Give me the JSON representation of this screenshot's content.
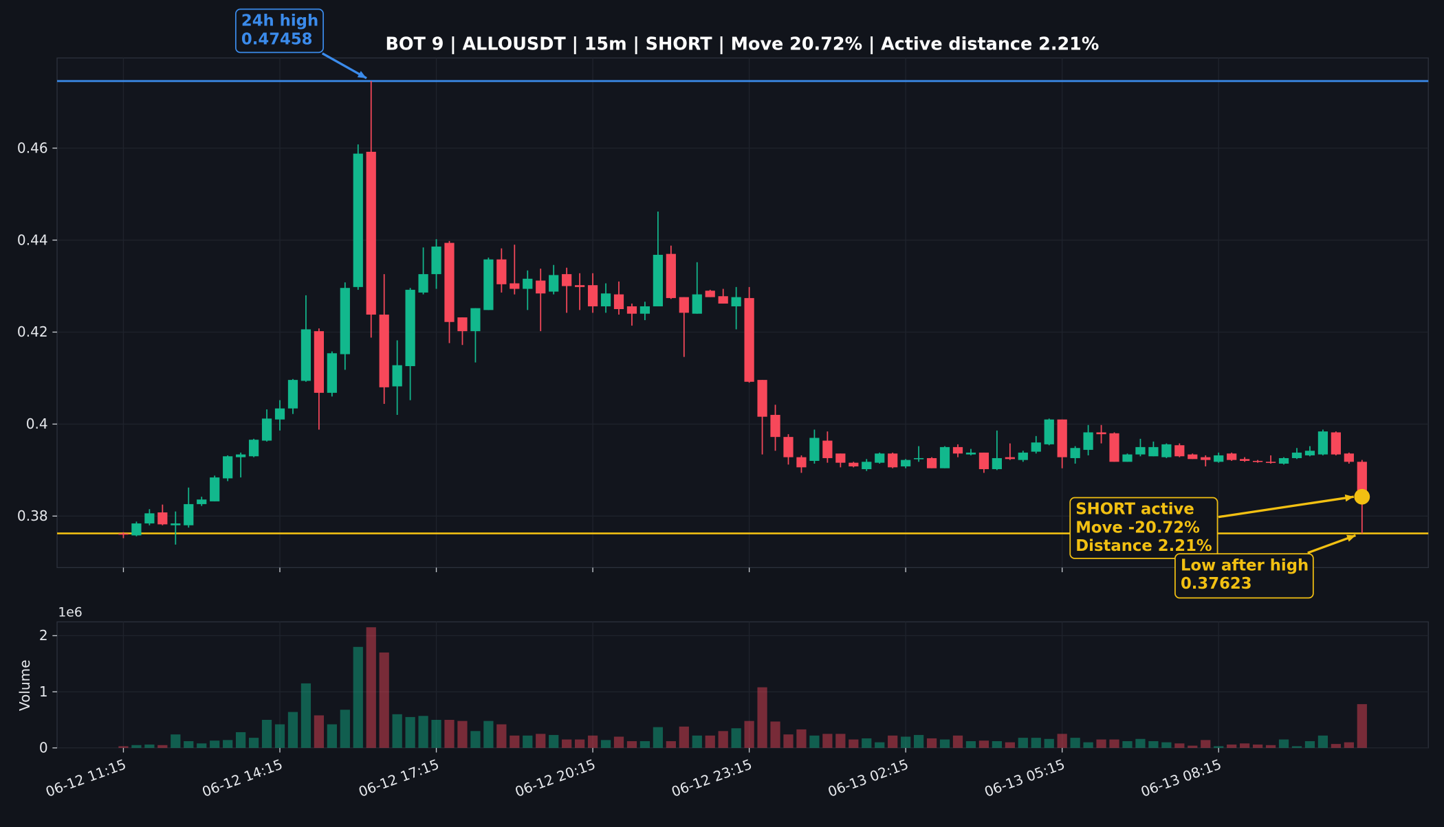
{
  "chart_data": {
    "type": "candlestick",
    "title": "BOT 9 | ALLOUSDT | 15m | SHORT | Move 20.72% | Active distance 2.21%",
    "categories": [
      "06-12 11:15",
      null,
      null,
      null,
      null,
      null,
      null,
      null,
      null,
      null,
      null,
      null,
      "06-12 14:15",
      null,
      null,
      null,
      null,
      null,
      null,
      null,
      null,
      null,
      null,
      null,
      "06-12 17:15",
      null,
      null,
      null,
      null,
      null,
      null,
      null,
      null,
      null,
      null,
      null,
      "06-12 20:15",
      null,
      null,
      null,
      null,
      null,
      null,
      null,
      null,
      null,
      null,
      null,
      "06-12 23:15",
      null,
      null,
      null,
      null,
      null,
      null,
      null,
      null,
      null,
      null,
      null,
      "06-13 02:15",
      null,
      null,
      null,
      null,
      null,
      null,
      null,
      null,
      null,
      null,
      null,
      "06-13 05:15",
      null,
      null,
      null,
      null,
      null,
      null,
      null,
      null,
      null,
      null,
      null,
      "06-13 08:15",
      null,
      null,
      null,
      null,
      null,
      null,
      null,
      null,
      null,
      null,
      null
    ],
    "open": [
      0.3762,
      0.3758,
      0.3784,
      0.3808,
      0.378,
      0.378,
      0.3826,
      0.3832,
      0.3882,
      0.3928,
      0.393,
      0.3964,
      0.401,
      0.4034,
      0.4094,
      0.4202,
      0.4068,
      0.4152,
      0.4298,
      0.4592,
      0.4238,
      0.4082,
      0.4126,
      0.4286,
      0.4326,
      0.4394,
      0.4232,
      0.4202,
      0.4248,
      0.4358,
      0.4306,
      0.4294,
      0.4312,
      0.4288,
      0.4326,
      0.4302,
      0.4302,
      0.4256,
      0.4282,
      0.4256,
      0.424,
      0.4256,
      0.437,
      0.4276,
      0.424,
      0.429,
      0.4278,
      0.4256,
      0.4274,
      0.4096,
      0.402,
      0.3972,
      0.3928,
      0.392,
      0.3964,
      0.3936,
      0.3916,
      0.3902,
      0.3916,
      0.3936,
      0.3908,
      0.3924,
      0.3926,
      0.3904,
      0.395,
      0.3934,
      0.3938,
      0.3902,
      0.3928,
      0.3922,
      0.394,
      0.3956,
      0.401,
      0.3926,
      0.3944,
      0.3982,
      0.398,
      0.3918,
      0.3934,
      0.393,
      0.3928,
      0.3954,
      0.3934,
      0.3928,
      0.3918,
      0.3936,
      0.3924,
      0.392,
      0.3918,
      0.3914,
      0.3926,
      0.3932,
      0.3934,
      0.3982,
      0.3936,
      0.3918
    ],
    "high": [
      0.3765,
      0.3788,
      0.3815,
      0.3825,
      0.381,
      0.3862,
      0.3842,
      0.3888,
      0.3932,
      0.3938,
      0.3968,
      0.4032,
      0.4052,
      0.4098,
      0.428,
      0.4208,
      0.4158,
      0.4308,
      0.4608,
      0.47458,
      0.4326,
      0.4182,
      0.4296,
      0.4384,
      0.4402,
      0.4398,
      0.4232,
      0.4252,
      0.4362,
      0.4382,
      0.439,
      0.4334,
      0.4338,
      0.4346,
      0.434,
      0.4328,
      0.4328,
      0.4306,
      0.431,
      0.4262,
      0.4266,
      0.4462,
      0.4388,
      0.4276,
      0.4352,
      0.4292,
      0.4294,
      0.4298,
      0.4298,
      0.4096,
      0.4042,
      0.3978,
      0.3932,
      0.3988,
      0.3984,
      0.3936,
      0.3918,
      0.3924,
      0.3938,
      0.3938,
      0.3924,
      0.3952,
      0.3928,
      0.3952,
      0.3956,
      0.3946,
      0.3938,
      0.3986,
      0.3958,
      0.3942,
      0.3974,
      0.4012,
      0.401,
      0.3952,
      0.3998,
      0.3998,
      0.3982,
      0.3936,
      0.3968,
      0.3962,
      0.3958,
      0.3958,
      0.3936,
      0.3932,
      0.3938,
      0.3938,
      0.3928,
      0.3922,
      0.3932,
      0.3928,
      0.3948,
      0.3952,
      0.3988,
      0.3984,
      0.3938,
      0.3922
    ],
    "low": [
      0.3752,
      0.3756,
      0.378,
      0.378,
      0.3738,
      0.3775,
      0.3822,
      0.3832,
      0.3876,
      0.3884,
      0.3928,
      0.3962,
      0.3986,
      0.4022,
      0.4092,
      0.3988,
      0.406,
      0.4118,
      0.4292,
      0.4188,
      0.4044,
      0.402,
      0.4052,
      0.4282,
      0.4294,
      0.4176,
      0.4172,
      0.4134,
      0.4248,
      0.4286,
      0.4282,
      0.4248,
      0.4202,
      0.4282,
      0.4242,
      0.4248,
      0.4242,
      0.4242,
      0.4238,
      0.4214,
      0.4226,
      0.4256,
      0.4272,
      0.4146,
      0.424,
      0.4276,
      0.4262,
      0.4206,
      0.409,
      0.3934,
      0.3942,
      0.3912,
      0.3894,
      0.3914,
      0.3916,
      0.3906,
      0.3906,
      0.3898,
      0.3914,
      0.3904,
      0.3904,
      0.3918,
      0.3904,
      0.3904,
      0.3928,
      0.3932,
      0.3894,
      0.39,
      0.3922,
      0.3918,
      0.3936,
      0.3954,
      0.3904,
      0.3914,
      0.3932,
      0.3958,
      0.3918,
      0.3918,
      0.393,
      0.393,
      0.3926,
      0.3928,
      0.3924,
      0.3908,
      0.3916,
      0.392,
      0.3918,
      0.3916,
      0.3914,
      0.3912,
      0.3924,
      0.393,
      0.3932,
      0.3932,
      0.3914,
      0.37623
    ],
    "close": [
      0.376,
      0.3784,
      0.3806,
      0.3782,
      0.3784,
      0.3826,
      0.3836,
      0.3884,
      0.393,
      0.3934,
      0.3966,
      0.4012,
      0.4034,
      0.4096,
      0.4206,
      0.4068,
      0.4154,
      0.4296,
      0.4588,
      0.4238,
      0.408,
      0.4128,
      0.4292,
      0.4326,
      0.4386,
      0.4222,
      0.4202,
      0.4252,
      0.4358,
      0.4304,
      0.4294,
      0.4316,
      0.4284,
      0.4324,
      0.43,
      0.4298,
      0.4256,
      0.4284,
      0.425,
      0.424,
      0.4256,
      0.4368,
      0.4274,
      0.4242,
      0.4282,
      0.4276,
      0.4262,
      0.4276,
      0.4092,
      0.4016,
      0.3972,
      0.3928,
      0.3906,
      0.397,
      0.3926,
      0.3916,
      0.3908,
      0.3918,
      0.3936,
      0.3906,
      0.3922,
      0.3926,
      0.3904,
      0.395,
      0.3936,
      0.3938,
      0.3902,
      0.3926,
      0.3924,
      0.3938,
      0.396,
      0.401,
      0.3928,
      0.3948,
      0.3982,
      0.3978,
      0.3918,
      0.3934,
      0.395,
      0.395,
      0.3956,
      0.393,
      0.3924,
      0.3922,
      0.3932,
      0.3922,
      0.392,
      0.3918,
      0.3916,
      0.3926,
      0.3938,
      0.3942,
      0.3984,
      0.3934,
      0.3918,
      0.3842
    ],
    "volume": [
      30000,
      50000,
      60000,
      50000,
      240000,
      120000,
      80000,
      130000,
      140000,
      280000,
      180000,
      500000,
      420000,
      640000,
      1150000,
      580000,
      420000,
      680000,
      1800000,
      2150000,
      1700000,
      600000,
      550000,
      570000,
      500000,
      500000,
      480000,
      300000,
      480000,
      420000,
      220000,
      220000,
      250000,
      230000,
      150000,
      150000,
      220000,
      140000,
      200000,
      120000,
      120000,
      370000,
      120000,
      380000,
      220000,
      220000,
      300000,
      350000,
      480000,
      1080000,
      470000,
      240000,
      330000,
      220000,
      250000,
      250000,
      150000,
      170000,
      100000,
      220000,
      200000,
      230000,
      170000,
      150000,
      220000,
      120000,
      130000,
      120000,
      100000,
      180000,
      180000,
      160000,
      250000,
      180000,
      100000,
      150000,
      150000,
      120000,
      160000,
      120000,
      100000,
      80000,
      40000,
      140000,
      30000,
      60000,
      80000,
      60000,
      50000,
      150000,
      30000,
      120000,
      220000,
      70000,
      100000,
      780000
    ],
    "up_color": "#12b88d",
    "down_color": "#f7485a",
    "ylim": [
      0.3688,
      0.4796
    ],
    "yticks": [
      0.38,
      {
        "value": 0.4,
        "label": "0.4"
      },
      0.42,
      0.44,
      0.46
    ],
    "volume_label": "Volume",
    "volume_offset": "1e6",
    "volume_ylim": [
      0,
      2246000
    ],
    "volume_ticks": [
      {
        "value": 0,
        "label": "0"
      },
      {
        "value": 1000000,
        "label": "1"
      },
      {
        "value": 2000000,
        "label": "2"
      }
    ],
    "grid": true,
    "hlines": [
      {
        "name": "24h high",
        "value": 0.47458,
        "label": "0.47458",
        "color": "#3b8beb"
      },
      {
        "name": "Low after high",
        "value": 0.37623,
        "label": "0.37623",
        "color": "#f2c012"
      }
    ],
    "status": {
      "lines": [
        "SHORT active",
        "Move -20.72%",
        "Distance 2.21%"
      ],
      "color": "#f2c012"
    }
  }
}
